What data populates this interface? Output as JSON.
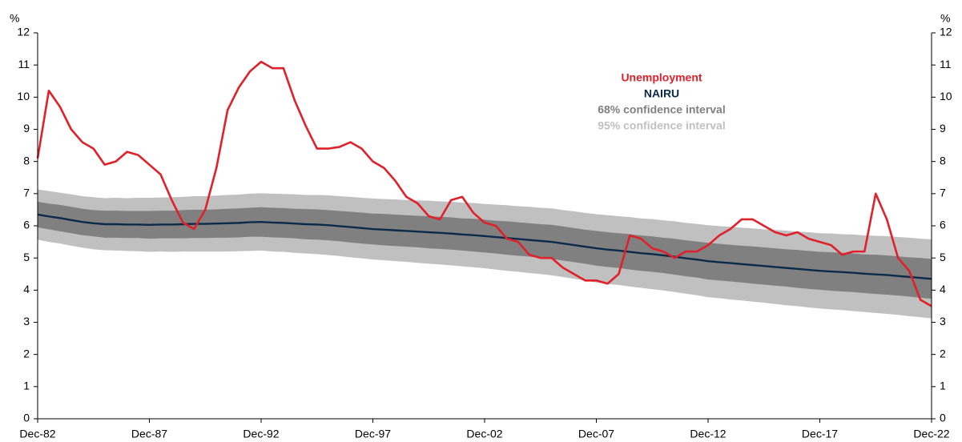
{
  "chart_data": {
    "type": "line",
    "y_unit": "%",
    "categories": [
      "Dec-82",
      null,
      null,
      null,
      null,
      null,
      null,
      null,
      null,
      null,
      "Dec-87",
      null,
      null,
      null,
      null,
      null,
      null,
      null,
      null,
      null,
      "Dec-92",
      null,
      null,
      null,
      null,
      null,
      null,
      null,
      null,
      null,
      "Dec-97",
      null,
      null,
      null,
      null,
      null,
      null,
      null,
      null,
      null,
      "Dec-02",
      null,
      null,
      null,
      null,
      null,
      null,
      null,
      null,
      null,
      "Dec-07",
      null,
      null,
      null,
      null,
      null,
      null,
      null,
      null,
      null,
      "Dec-12",
      null,
      null,
      null,
      null,
      null,
      null,
      null,
      null,
      null,
      "Dec-17",
      null,
      null,
      null,
      null,
      null,
      null,
      null,
      null,
      null,
      "Dec-22"
    ],
    "ylim": [
      0,
      12
    ],
    "yticks": [
      0,
      1,
      2,
      3,
      4,
      5,
      6,
      7,
      8,
      9,
      10,
      11,
      12
    ],
    "series": [
      {
        "name": "95% confidence interval",
        "kind": "band",
        "color": "#c0c0c0",
        "upper": [
          7.13,
          7.08,
          7.03,
          6.98,
          6.92,
          6.89,
          6.86,
          6.87,
          6.86,
          6.87,
          6.87,
          6.88,
          6.89,
          6.9,
          6.92,
          6.92,
          6.94,
          6.96,
          6.97,
          7.0,
          7.01,
          7.0,
          6.99,
          6.98,
          6.96,
          6.96,
          6.95,
          6.92,
          6.9,
          6.87,
          6.85,
          6.83,
          6.82,
          6.8,
          6.79,
          6.78,
          6.76,
          6.75,
          6.72,
          6.71,
          6.68,
          6.66,
          6.64,
          6.61,
          6.59,
          6.56,
          6.54,
          6.49,
          6.45,
          6.4,
          6.36,
          6.33,
          6.3,
          6.27,
          6.23,
          6.21,
          6.17,
          6.14,
          6.09,
          6.06,
          6.02,
          5.99,
          5.97,
          5.94,
          5.92,
          5.89,
          5.87,
          5.85,
          5.82,
          5.8,
          5.77,
          5.76,
          5.74,
          5.73,
          5.7,
          5.69,
          5.68,
          5.65,
          5.63,
          5.6,
          5.58
        ],
        "lower": [
          5.57,
          5.5,
          5.45,
          5.38,
          5.32,
          5.27,
          5.24,
          5.23,
          5.22,
          5.21,
          5.19,
          5.2,
          5.19,
          5.2,
          5.2,
          5.2,
          5.2,
          5.2,
          5.21,
          5.22,
          5.23,
          5.2,
          5.19,
          5.16,
          5.14,
          5.12,
          5.09,
          5.06,
          5.02,
          4.99,
          4.95,
          4.93,
          4.9,
          4.88,
          4.85,
          4.82,
          4.8,
          4.77,
          4.74,
          4.71,
          4.68,
          4.64,
          4.6,
          4.57,
          4.53,
          4.5,
          4.46,
          4.41,
          4.35,
          4.3,
          4.24,
          4.19,
          4.16,
          4.11,
          4.07,
          4.03,
          3.99,
          3.94,
          3.89,
          3.84,
          3.78,
          3.75,
          3.71,
          3.68,
          3.64,
          3.61,
          3.57,
          3.53,
          3.5,
          3.46,
          3.43,
          3.4,
          3.38,
          3.35,
          3.32,
          3.29,
          3.26,
          3.23,
          3.19,
          3.16,
          3.12
        ]
      },
      {
        "name": "68% confidence interval",
        "kind": "band",
        "color": "#808080",
        "upper": [
          6.75,
          6.69,
          6.65,
          6.59,
          6.53,
          6.49,
          6.47,
          6.47,
          6.46,
          6.46,
          6.46,
          6.47,
          6.47,
          6.49,
          6.5,
          6.5,
          6.51,
          6.53,
          6.54,
          6.56,
          6.58,
          6.56,
          6.55,
          6.53,
          6.52,
          6.51,
          6.49,
          6.46,
          6.44,
          6.41,
          6.38,
          6.37,
          6.35,
          6.33,
          6.31,
          6.3,
          6.28,
          6.26,
          6.23,
          6.22,
          6.19,
          6.16,
          6.14,
          6.11,
          6.08,
          6.05,
          6.03,
          5.98,
          5.93,
          5.88,
          5.84,
          5.8,
          5.77,
          5.74,
          5.7,
          5.67,
          5.63,
          5.6,
          5.55,
          5.51,
          5.47,
          5.44,
          5.41,
          5.38,
          5.36,
          5.33,
          5.3,
          5.27,
          5.25,
          5.22,
          5.19,
          5.18,
          5.16,
          5.14,
          5.11,
          5.1,
          5.08,
          5.05,
          5.02,
          5.0,
          4.97
        ],
        "lower": [
          5.95,
          5.89,
          5.83,
          5.77,
          5.71,
          5.67,
          5.63,
          5.63,
          5.62,
          5.62,
          5.6,
          5.61,
          5.61,
          5.61,
          5.62,
          5.62,
          5.63,
          5.63,
          5.64,
          5.66,
          5.66,
          5.64,
          5.63,
          5.61,
          5.58,
          5.57,
          5.55,
          5.52,
          5.48,
          5.45,
          5.42,
          5.39,
          5.37,
          5.35,
          5.33,
          5.3,
          5.28,
          5.26,
          5.23,
          5.2,
          5.17,
          5.14,
          5.1,
          5.07,
          5.04,
          5.01,
          4.97,
          4.92,
          4.87,
          4.82,
          4.76,
          4.72,
          4.69,
          4.64,
          4.6,
          4.57,
          4.53,
          4.48,
          4.43,
          4.39,
          4.33,
          4.3,
          4.27,
          4.24,
          4.2,
          4.17,
          4.14,
          4.11,
          4.07,
          4.04,
          4.01,
          3.98,
          3.96,
          3.94,
          3.91,
          3.88,
          3.86,
          3.83,
          3.8,
          3.76,
          3.73
        ]
      },
      {
        "name": "NAIRU",
        "kind": "line",
        "color": "#0b2a4a",
        "values": [
          6.35,
          6.29,
          6.24,
          6.18,
          6.12,
          6.08,
          6.05,
          6.05,
          6.04,
          6.04,
          6.03,
          6.04,
          6.04,
          6.05,
          6.06,
          6.06,
          6.07,
          6.08,
          6.09,
          6.11,
          6.12,
          6.1,
          6.09,
          6.07,
          6.05,
          6.04,
          6.02,
          5.99,
          5.96,
          5.93,
          5.9,
          5.88,
          5.86,
          5.84,
          5.82,
          5.8,
          5.78,
          5.76,
          5.73,
          5.71,
          5.68,
          5.65,
          5.62,
          5.59,
          5.56,
          5.53,
          5.5,
          5.45,
          5.4,
          5.35,
          5.3,
          5.26,
          5.23,
          5.19,
          5.15,
          5.12,
          5.08,
          5.04,
          4.99,
          4.95,
          4.9,
          4.87,
          4.84,
          4.81,
          4.78,
          4.75,
          4.72,
          4.69,
          4.66,
          4.63,
          4.6,
          4.58,
          4.56,
          4.54,
          4.51,
          4.49,
          4.47,
          4.44,
          4.41,
          4.38,
          4.35
        ]
      },
      {
        "name": "Unemployment",
        "kind": "line",
        "color": "#e0202a",
        "values": [
          8.1,
          10.2,
          9.7,
          9.0,
          8.6,
          8.4,
          7.9,
          8.0,
          8.3,
          8.2,
          7.9,
          7.6,
          6.8,
          6.1,
          5.9,
          6.5,
          7.8,
          9.6,
          10.3,
          10.8,
          11.1,
          10.9,
          10.9,
          9.9,
          9.1,
          8.4,
          8.4,
          8.45,
          8.6,
          8.4,
          8.0,
          7.8,
          7.4,
          6.9,
          6.7,
          6.3,
          6.2,
          6.8,
          6.9,
          6.4,
          6.1,
          6.0,
          5.6,
          5.5,
          5.1,
          5.0,
          5.0,
          4.7,
          4.5,
          4.3,
          4.3,
          4.2,
          4.5,
          5.7,
          5.6,
          5.3,
          5.2,
          5.0,
          5.2,
          5.2,
          5.4,
          5.7,
          5.9,
          6.2,
          6.2,
          6.0,
          5.8,
          5.7,
          5.8,
          5.6,
          5.5,
          5.4,
          5.1,
          5.2,
          5.2,
          7.0,
          6.2,
          5.0,
          4.6,
          3.7,
          3.5
        ]
      }
    ],
    "legend_order": [
      3,
      2,
      1,
      0
    ]
  }
}
